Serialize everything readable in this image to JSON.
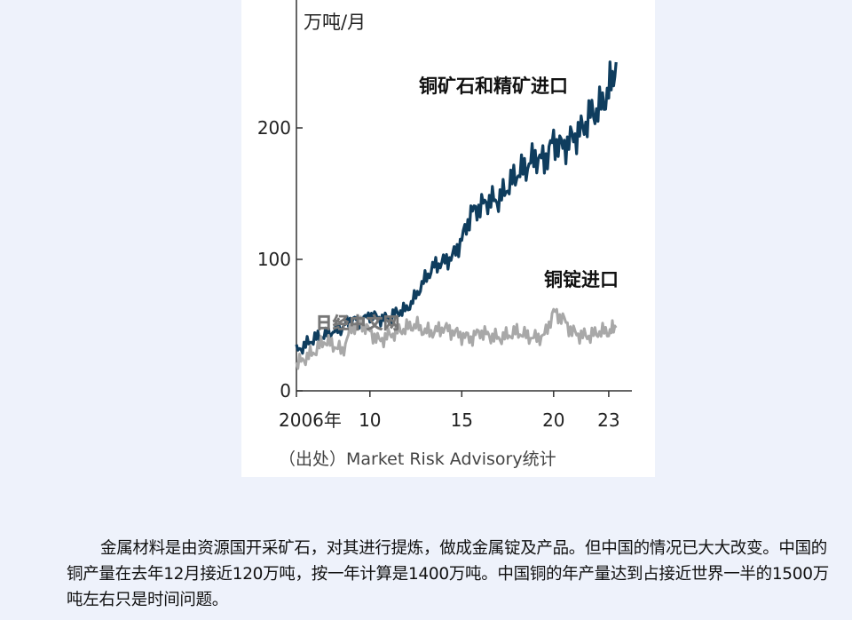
{
  "chart_data": {
    "type": "line",
    "unit_label": "万吨/月",
    "x_ticks": [
      "2006年",
      "10",
      "15",
      "20",
      "23"
    ],
    "y_ticks": [
      "0",
      "100",
      "200"
    ],
    "ylim": [
      0,
      280
    ],
    "watermark": "日经中文网",
    "series": [
      {
        "name": "铜矿石和精矿进口",
        "color": "#0f3d5e",
        "points": [
          [
            2006.0,
            30
          ],
          [
            2006.5,
            35
          ],
          [
            2007.0,
            40
          ],
          [
            2007.5,
            42
          ],
          [
            2008.0,
            45
          ],
          [
            2008.5,
            48
          ],
          [
            2009.0,
            55
          ],
          [
            2009.5,
            52
          ],
          [
            2010.0,
            58
          ],
          [
            2010.5,
            55
          ],
          [
            2011.0,
            55
          ],
          [
            2011.5,
            60
          ],
          [
            2012.0,
            62
          ],
          [
            2012.5,
            72
          ],
          [
            2013.0,
            85
          ],
          [
            2013.5,
            95
          ],
          [
            2014.0,
            98
          ],
          [
            2014.5,
            102
          ],
          [
            2015.0,
            115
          ],
          [
            2015.5,
            135
          ],
          [
            2016.0,
            140
          ],
          [
            2016.5,
            145
          ],
          [
            2017.0,
            145
          ],
          [
            2017.5,
            155
          ],
          [
            2018.0,
            165
          ],
          [
            2018.5,
            170
          ],
          [
            2019.0,
            178
          ],
          [
            2019.5,
            175
          ],
          [
            2020.0,
            190
          ],
          [
            2020.5,
            185
          ],
          [
            2021.0,
            192
          ],
          [
            2021.5,
            198
          ],
          [
            2022.0,
            210
          ],
          [
            2022.5,
            215
          ],
          [
            2023.0,
            228
          ],
          [
            2023.4,
            250
          ]
        ]
      },
      {
        "name": "铜锭进口",
        "color": "#a8a8a8",
        "points": [
          [
            2006.0,
            20
          ],
          [
            2006.5,
            25
          ],
          [
            2007.0,
            30
          ],
          [
            2007.5,
            38
          ],
          [
            2008.0,
            35
          ],
          [
            2008.5,
            30
          ],
          [
            2009.0,
            48
          ],
          [
            2009.5,
            52
          ],
          [
            2010.0,
            45
          ],
          [
            2010.5,
            38
          ],
          [
            2011.0,
            42
          ],
          [
            2011.5,
            45
          ],
          [
            2012.0,
            48
          ],
          [
            2012.5,
            50
          ],
          [
            2013.0,
            45
          ],
          [
            2013.5,
            45
          ],
          [
            2014.0,
            48
          ],
          [
            2014.5,
            45
          ],
          [
            2015.0,
            42
          ],
          [
            2015.5,
            40
          ],
          [
            2016.0,
            45
          ],
          [
            2016.5,
            42
          ],
          [
            2017.0,
            40
          ],
          [
            2017.5,
            42
          ],
          [
            2018.0,
            45
          ],
          [
            2018.5,
            42
          ],
          [
            2019.0,
            40
          ],
          [
            2019.5,
            42
          ],
          [
            2020.0,
            60
          ],
          [
            2020.5,
            55
          ],
          [
            2021.0,
            45
          ],
          [
            2021.5,
            42
          ],
          [
            2022.0,
            42
          ],
          [
            2022.5,
            45
          ],
          [
            2023.0,
            45
          ],
          [
            2023.4,
            48
          ]
        ]
      }
    ]
  },
  "source_text": "（出处）Market Risk Advisory统计",
  "article_text": "金属材料是由资源国开采矿石，对其进行提炼，做成金属锭及产品。但中国的情况已大大改变。中国的铜产量在去年12月接近120万吨，按一年计算是1400万吨。中国铜的年产量达到占接近世界一半的1500万吨左右只是时间问题。"
}
